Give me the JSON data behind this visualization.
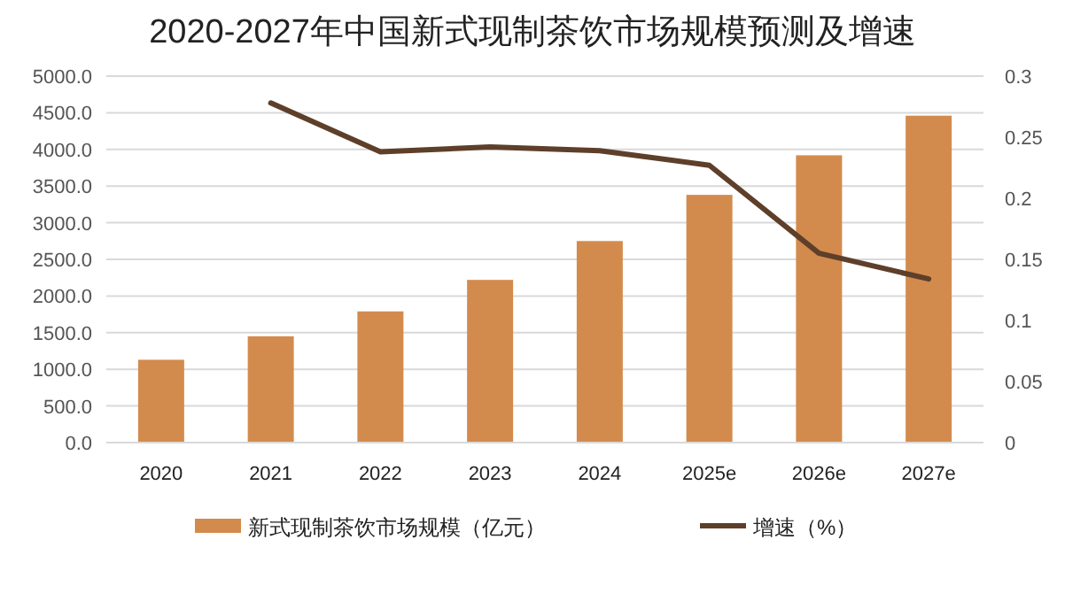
{
  "chart_data": {
    "type": "bar",
    "title": "2020-2027年中国新式现制茶饮市场规模预测及增速",
    "categories": [
      "2020",
      "2021",
      "2022",
      "2023",
      "2024",
      "2025e",
      "2026e",
      "2027e"
    ],
    "series": [
      {
        "name": "新式现制茶饮市场规模（亿元）",
        "color": "#d38b4d",
        "values": [
          1130,
          1450,
          1790,
          2220,
          2750,
          3380,
          3920,
          4460
        ]
      },
      {
        "name": "增速（%）",
        "type": "line",
        "axis": "y2",
        "color": "#5e3f2a",
        "values": [
          null,
          0.278,
          0.238,
          0.242,
          0.239,
          0.227,
          0.155,
          0.134
        ]
      }
    ],
    "ylim": [
      0,
      5000
    ],
    "yticks": [
      {
        "value": 0,
        "label": "0.0"
      },
      {
        "value": 500,
        "label": "500.0"
      },
      {
        "value": 1000,
        "label": "1000.0"
      },
      {
        "value": 1500,
        "label": "1500.0"
      },
      {
        "value": 2000,
        "label": "2000.0"
      },
      {
        "value": 2500,
        "label": "2500.0"
      },
      {
        "value": 3000,
        "label": "3000.0"
      },
      {
        "value": 3500,
        "label": "3500.0"
      },
      {
        "value": 4000,
        "label": "4000.0"
      },
      {
        "value": 4500,
        "label": "4500.0"
      },
      {
        "value": 5000,
        "label": "5000.0"
      }
    ],
    "y2lim": [
      0,
      0.3
    ],
    "y2ticks": [
      0,
      0.05,
      0.1,
      0.15,
      0.2,
      0.25,
      0.3
    ],
    "grid": "y",
    "legend": "bottom",
    "marker": "none",
    "line_style": "solid"
  }
}
